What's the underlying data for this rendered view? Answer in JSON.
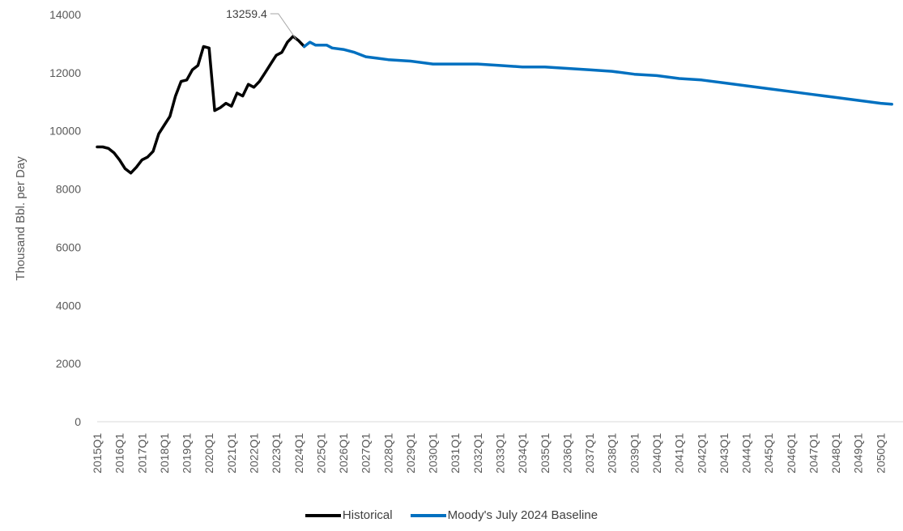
{
  "chart_data": {
    "type": "line",
    "title": "",
    "xlabel": "",
    "ylabel": "Thousand Bbl. per Day",
    "ylim": [
      0,
      14000
    ],
    "yticks": [
      0,
      2000,
      4000,
      6000,
      8000,
      10000,
      12000,
      14000
    ],
    "x_start_year": 2015,
    "x_end_year": 2050,
    "x_tick_labels": [
      "2015Q1",
      "2016Q1",
      "2017Q1",
      "2018Q1",
      "2019Q1",
      "2020Q1",
      "2021Q1",
      "2022Q1",
      "2023Q1",
      "2024Q1",
      "2025Q1",
      "2026Q1",
      "2027Q1",
      "2028Q1",
      "2029Q1",
      "2030Q1",
      "2031Q1",
      "2032Q1",
      "2033Q1",
      "2034Q1",
      "2035Q1",
      "2036Q1",
      "2037Q1",
      "2038Q1",
      "2039Q1",
      "2040Q1",
      "2041Q1",
      "2042Q1",
      "2043Q1",
      "2044Q1",
      "2045Q1",
      "2046Q1",
      "2047Q1",
      "2048Q1",
      "2049Q1",
      "2050Q1"
    ],
    "grid": false,
    "legend_position": "bottom",
    "annotation": {
      "text": "13259.4",
      "x": "2024Q1",
      "y": 13259.4
    },
    "series": [
      {
        "name": "Historical",
        "color": "#000000",
        "x": [
          "2015Q1",
          "2015Q2",
          "2015Q3",
          "2015Q4",
          "2016Q1",
          "2016Q2",
          "2016Q3",
          "2016Q4",
          "2017Q1",
          "2017Q2",
          "2017Q3",
          "2017Q4",
          "2018Q1",
          "2018Q2",
          "2018Q3",
          "2018Q4",
          "2019Q1",
          "2019Q2",
          "2019Q3",
          "2019Q4",
          "2020Q1",
          "2020Q2",
          "2020Q3",
          "2020Q4",
          "2021Q1",
          "2021Q2",
          "2021Q3",
          "2021Q4",
          "2022Q1",
          "2022Q2",
          "2022Q3",
          "2022Q4",
          "2023Q1",
          "2023Q2",
          "2023Q3",
          "2023Q4",
          "2024Q1",
          "2024Q2"
        ],
        "values": [
          9450,
          9450,
          9400,
          9250,
          9000,
          8700,
          8550,
          8750,
          9000,
          9100,
          9300,
          9900,
          10200,
          10500,
          11200,
          11700,
          11750,
          12100,
          12250,
          12900,
          12850,
          10700,
          10800,
          10950,
          10850,
          11300,
          11200,
          11600,
          11500,
          11700,
          12000,
          12300,
          12600,
          12700,
          13050,
          13250,
          13100,
          12900
        ]
      },
      {
        "name": "Moody's July 2024 Baseline",
        "color": "#0070c0",
        "x": [
          "2024Q2",
          "2024Q3",
          "2024Q4",
          "2025Q1",
          "2025Q2",
          "2025Q3",
          "2026Q1",
          "2026Q3",
          "2027Q1",
          "2027Q3",
          "2028Q1",
          "2029Q1",
          "2030Q1",
          "2031Q1",
          "2032Q1",
          "2033Q1",
          "2034Q1",
          "2035Q1",
          "2036Q1",
          "2037Q1",
          "2038Q1",
          "2039Q1",
          "2040Q1",
          "2041Q1",
          "2042Q1",
          "2043Q1",
          "2044Q1",
          "2045Q1",
          "2046Q1",
          "2047Q1",
          "2048Q1",
          "2049Q1",
          "2050Q1",
          "2050Q3"
        ],
        "values": [
          12900,
          13050,
          12950,
          12950,
          12950,
          12850,
          12800,
          12700,
          12550,
          12500,
          12450,
          12400,
          12300,
          12300,
          12300,
          12250,
          12200,
          12200,
          12150,
          12100,
          12050,
          11950,
          11900,
          11800,
          11750,
          11650,
          11550,
          11450,
          11350,
          11250,
          11150,
          11050,
          10950,
          10920
        ]
      }
    ]
  }
}
